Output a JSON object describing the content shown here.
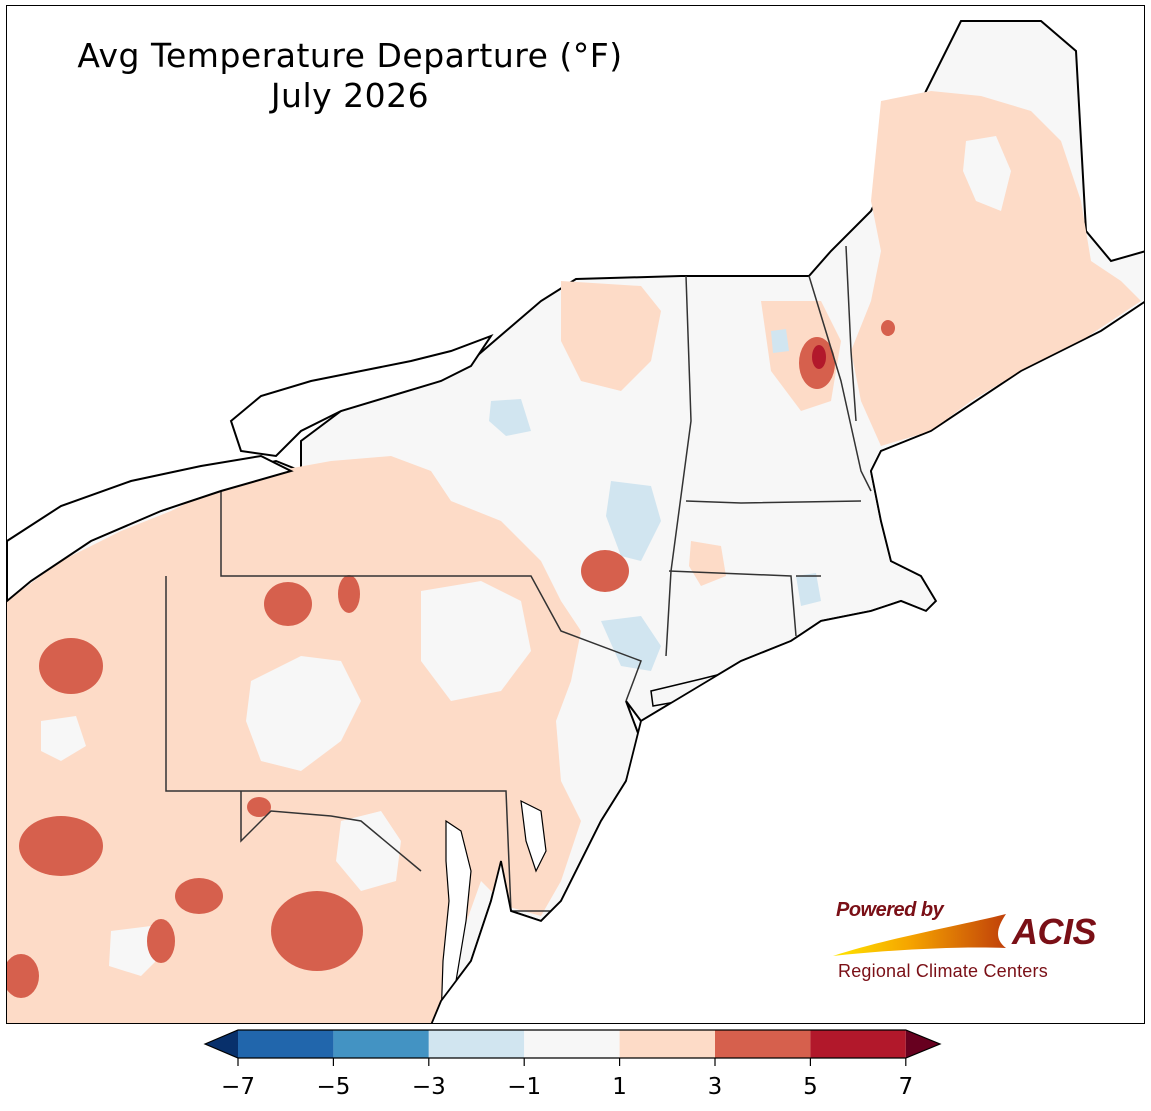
{
  "title": {
    "line1": "Avg Temperature Departure (°F)",
    "line2": "July 2026"
  },
  "colors": {
    "neg7": "#08306b",
    "neg7_to_neg5": "#2166ac",
    "neg5_to_neg3": "#4393c3",
    "neg3_to_neg1": "#d1e5f0",
    "neg1_to_1": "#f7f7f7",
    "1_to_3": "#fddbc7",
    "3_to_5": "#d6604d",
    "5_to_7": "#b2182b",
    "above7": "#67001f",
    "state_border": "#333333",
    "county_border": "#c8bfb8",
    "coast": "#000000",
    "water": "#ffffff"
  },
  "colorbar": {
    "ticks": [
      "−7",
      "−5",
      "−3",
      "−1",
      "1",
      "3",
      "5",
      "7"
    ],
    "extend": "both"
  },
  "logo": {
    "powered_by": "Powered by",
    "acis": "ACIS",
    "regional": "Regional Climate Centers"
  }
}
